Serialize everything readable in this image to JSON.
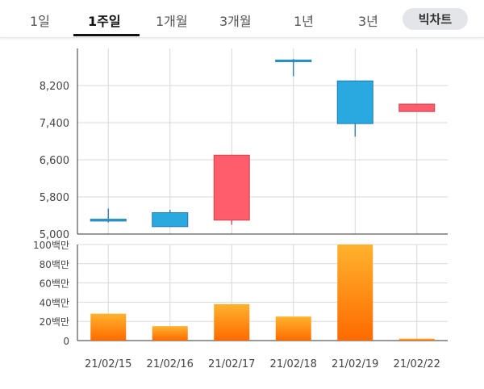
{
  "tabs": [
    {
      "label": "1일",
      "active": false
    },
    {
      "label": "1주일",
      "active": true
    },
    {
      "label": "1개월",
      "active": false
    },
    {
      "label": "3개월",
      "active": false
    },
    {
      "label": "1년",
      "active": false
    },
    {
      "label": "3년",
      "active": false
    }
  ],
  "toggle_label": "빅차트",
  "colors": {
    "up": "#ff5c6c",
    "down": "#2aa8e0",
    "volume_top": "#ffb32e",
    "volume_bottom": "#ff6a00",
    "grid": "#d9d9d9",
    "axis": "#333333"
  },
  "chart_data": [
    {
      "type": "candlestick",
      "categories": [
        "21/02/15",
        "21/02/16",
        "21/02/17",
        "21/02/18",
        "21/02/19",
        "21/02/22"
      ],
      "ohlc": [
        {
          "open": 5320,
          "high": 5550,
          "low": 5250,
          "close": 5280
        },
        {
          "open": 5460,
          "high": 5520,
          "low": 5150,
          "close": 5160
        },
        {
          "open": 5300,
          "high": 6700,
          "low": 5200,
          "close": 6700
        },
        {
          "open": 8750,
          "high": 8770,
          "low": 8400,
          "close": 8720
        },
        {
          "open": 8300,
          "high": 8300,
          "low": 7100,
          "close": 7380
        },
        {
          "open": 7640,
          "high": 7800,
          "low": 7640,
          "close": 7800
        }
      ],
      "yticks": [
        5000,
        5800,
        6600,
        7400,
        8200
      ],
      "ytick_labels": [
        "5,000",
        "5,800",
        "6,600",
        "7,400",
        "8,200"
      ],
      "ylim": [
        5000,
        9000
      ],
      "grid": true
    },
    {
      "type": "bar",
      "categories": [
        "21/02/15",
        "21/02/16",
        "21/02/17",
        "21/02/18",
        "21/02/19",
        "21/02/22"
      ],
      "values": [
        28,
        15,
        38,
        25,
        100,
        2
      ],
      "unit": "백만",
      "yticks": [
        0,
        20,
        40,
        60,
        80,
        100
      ],
      "ytick_labels": [
        "0",
        "20백만",
        "40백만",
        "60백만",
        "80백만",
        "100백만"
      ],
      "ylim": [
        0,
        100
      ],
      "grid": true
    }
  ]
}
